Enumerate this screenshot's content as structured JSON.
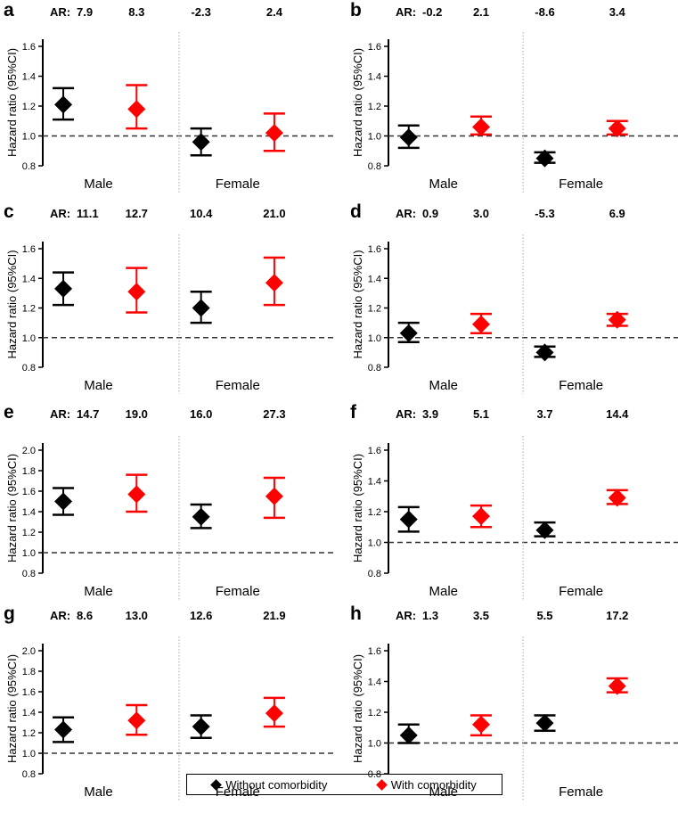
{
  "chart_data": [
    {
      "panel": "a",
      "type": "scatter",
      "ylabel": "Hazard ratio (95%CI)",
      "ylim": [
        0.8,
        1.6
      ],
      "yticks": [
        "0.8",
        "1.0",
        "1.2",
        "1.4",
        "1.6"
      ],
      "reference_line": 1.0,
      "groups": [
        "Male",
        "Female"
      ],
      "ar_prefix": "AR:",
      "points": [
        {
          "group": "Male",
          "series": "Without comorbidity",
          "hr": 1.21,
          "lo": 1.11,
          "hi": 1.32,
          "ar": "7.9"
        },
        {
          "group": "Male",
          "series": "With comorbidity",
          "hr": 1.18,
          "lo": 1.05,
          "hi": 1.34,
          "ar": "8.3"
        },
        {
          "group": "Female",
          "series": "Without comorbidity",
          "hr": 0.96,
          "lo": 0.87,
          "hi": 1.05,
          "ar": "-2.3"
        },
        {
          "group": "Female",
          "series": "With comorbidity",
          "hr": 1.02,
          "lo": 0.9,
          "hi": 1.15,
          "ar": "2.4"
        }
      ]
    },
    {
      "panel": "b",
      "type": "scatter",
      "ylabel": "Hazard ratio (95%CI)",
      "ylim": [
        0.8,
        1.6
      ],
      "yticks": [
        "0.8",
        "1.0",
        "1.2",
        "1.4",
        "1.6"
      ],
      "reference_line": 1.0,
      "groups": [
        "Male",
        "Female"
      ],
      "ar_prefix": "AR:",
      "points": [
        {
          "group": "Male",
          "series": "Without comorbidity",
          "hr": 0.99,
          "lo": 0.92,
          "hi": 1.07,
          "ar": "-0.2"
        },
        {
          "group": "Male",
          "series": "With comorbidity",
          "hr": 1.06,
          "lo": 1.01,
          "hi": 1.13,
          "ar": "2.1"
        },
        {
          "group": "Female",
          "series": "Without comorbidity",
          "hr": 0.85,
          "lo": 0.82,
          "hi": 0.89,
          "ar": "-8.6"
        },
        {
          "group": "Female",
          "series": "With comorbidity",
          "hr": 1.05,
          "lo": 1.01,
          "hi": 1.1,
          "ar": "3.4"
        }
      ]
    },
    {
      "panel": "c",
      "type": "scatter",
      "ylabel": "Hazard ratio (95%CI)",
      "ylim": [
        0.8,
        1.6
      ],
      "yticks": [
        "0.8",
        "1.0",
        "1.2",
        "1.4",
        "1.6"
      ],
      "reference_line": 1.0,
      "groups": [
        "Male",
        "Female"
      ],
      "ar_prefix": "AR:",
      "points": [
        {
          "group": "Male",
          "series": "Without comorbidity",
          "hr": 1.33,
          "lo": 1.22,
          "hi": 1.44,
          "ar": "11.1"
        },
        {
          "group": "Male",
          "series": "With comorbidity",
          "hr": 1.31,
          "lo": 1.17,
          "hi": 1.47,
          "ar": "12.7"
        },
        {
          "group": "Female",
          "series": "Without comorbidity",
          "hr": 1.2,
          "lo": 1.1,
          "hi": 1.31,
          "ar": "10.4"
        },
        {
          "group": "Female",
          "series": "With comorbidity",
          "hr": 1.37,
          "lo": 1.22,
          "hi": 1.54,
          "ar": "21.0"
        }
      ]
    },
    {
      "panel": "d",
      "type": "scatter",
      "ylabel": "Hazard ratio (95%CI)",
      "ylim": [
        0.8,
        1.6
      ],
      "yticks": [
        "0.8",
        "1.0",
        "1.2",
        "1.4",
        "1.6"
      ],
      "reference_line": 1.0,
      "groups": [
        "Male",
        "Female"
      ],
      "ar_prefix": "AR:",
      "points": [
        {
          "group": "Male",
          "series": "Without comorbidity",
          "hr": 1.03,
          "lo": 0.97,
          "hi": 1.1,
          "ar": "0.9"
        },
        {
          "group": "Male",
          "series": "With comorbidity",
          "hr": 1.09,
          "lo": 1.03,
          "hi": 1.16,
          "ar": "3.0"
        },
        {
          "group": "Female",
          "series": "Without comorbidity",
          "hr": 0.9,
          "lo": 0.87,
          "hi": 0.94,
          "ar": "-5.3"
        },
        {
          "group": "Female",
          "series": "With comorbidity",
          "hr": 1.12,
          "lo": 1.08,
          "hi": 1.16,
          "ar": "6.9"
        }
      ]
    },
    {
      "panel": "e",
      "type": "scatter",
      "ylabel": "Hazard ratio (95%CI)",
      "ylim": [
        0.8,
        2.0
      ],
      "yticks": [
        "0.8",
        "1.0",
        "1.2",
        "1.4",
        "1.6",
        "1.8",
        "2.0"
      ],
      "reference_line": 1.0,
      "groups": [
        "Male",
        "Female"
      ],
      "ar_prefix": "AR:",
      "points": [
        {
          "group": "Male",
          "series": "Without comorbidity",
          "hr": 1.5,
          "lo": 1.37,
          "hi": 1.63,
          "ar": "14.7"
        },
        {
          "group": "Male",
          "series": "With comorbidity",
          "hr": 1.57,
          "lo": 1.4,
          "hi": 1.76,
          "ar": "19.0"
        },
        {
          "group": "Female",
          "series": "Without comorbidity",
          "hr": 1.35,
          "lo": 1.24,
          "hi": 1.47,
          "ar": "16.0"
        },
        {
          "group": "Female",
          "series": "With comorbidity",
          "hr": 1.55,
          "lo": 1.34,
          "hi": 1.73,
          "ar": "27.3"
        }
      ]
    },
    {
      "panel": "f",
      "type": "scatter",
      "ylabel": "Hazard ratio (95%CI)",
      "ylim": [
        0.8,
        1.6
      ],
      "yticks": [
        "0.8",
        "1.0",
        "1.2",
        "1.4",
        "1.6"
      ],
      "reference_line": 1.0,
      "groups": [
        "Male",
        "Female"
      ],
      "ar_prefix": "AR:",
      "points": [
        {
          "group": "Male",
          "series": "Without comorbidity",
          "hr": 1.15,
          "lo": 1.07,
          "hi": 1.23,
          "ar": "3.9"
        },
        {
          "group": "Male",
          "series": "With comorbidity",
          "hr": 1.17,
          "lo": 1.1,
          "hi": 1.24,
          "ar": "5.1"
        },
        {
          "group": "Female",
          "series": "Without comorbidity",
          "hr": 1.08,
          "lo": 1.04,
          "hi": 1.13,
          "ar": "3.7"
        },
        {
          "group": "Female",
          "series": "With comorbidity",
          "hr": 1.29,
          "lo": 1.25,
          "hi": 1.34,
          "ar": "14.4"
        }
      ]
    },
    {
      "panel": "g",
      "type": "scatter",
      "ylabel": "Hazard ratio (95%CI)",
      "ylim": [
        0.8,
        2.0
      ],
      "yticks": [
        "0.8",
        "1.0",
        "1.2",
        "1.4",
        "1.6",
        "1.8",
        "2.0"
      ],
      "reference_line": 1.0,
      "groups": [
        "Male",
        "Female"
      ],
      "ar_prefix": "AR:",
      "points": [
        {
          "group": "Male",
          "series": "Without comorbidity",
          "hr": 1.23,
          "lo": 1.11,
          "hi": 1.35,
          "ar": "8.6"
        },
        {
          "group": "Male",
          "series": "With comorbidity",
          "hr": 1.32,
          "lo": 1.18,
          "hi": 1.47,
          "ar": "13.0"
        },
        {
          "group": "Female",
          "series": "Without comorbidity",
          "hr": 1.26,
          "lo": 1.15,
          "hi": 1.37,
          "ar": "12.6"
        },
        {
          "group": "Female",
          "series": "With comorbidity",
          "hr": 1.39,
          "lo": 1.26,
          "hi": 1.54,
          "ar": "21.9"
        }
      ]
    },
    {
      "panel": "h",
      "type": "scatter",
      "ylabel": "Hazard ratio (95%CI)",
      "ylim": [
        0.8,
        1.6
      ],
      "yticks": [
        "0.8",
        "1.0",
        "1.2",
        "1.4",
        "1.6"
      ],
      "reference_line": 1.0,
      "groups": [
        "Male",
        "Female"
      ],
      "ar_prefix": "AR:",
      "points": [
        {
          "group": "Male",
          "series": "Without comorbidity",
          "hr": 1.05,
          "lo": 1.0,
          "hi": 1.12,
          "ar": "1.3"
        },
        {
          "group": "Male",
          "series": "With comorbidity",
          "hr": 1.12,
          "lo": 1.05,
          "hi": 1.18,
          "ar": "3.5"
        },
        {
          "group": "Female",
          "series": "Without comorbidity",
          "hr": 1.13,
          "lo": 1.08,
          "hi": 1.18,
          "ar": "5.5"
        },
        {
          "group": "Female",
          "series": "With comorbidity",
          "hr": 1.37,
          "lo": 1.33,
          "hi": 1.42,
          "ar": "17.2"
        }
      ]
    }
  ],
  "legend": {
    "items": [
      {
        "label": "Without comorbidity",
        "color": "#000000"
      },
      {
        "label": "With comorbidity",
        "color": "#ff0000"
      }
    ]
  },
  "colors": {
    "without": "#000000",
    "with": "#ff0000",
    "reference": "#333333",
    "divider": "#aaaaaa"
  }
}
